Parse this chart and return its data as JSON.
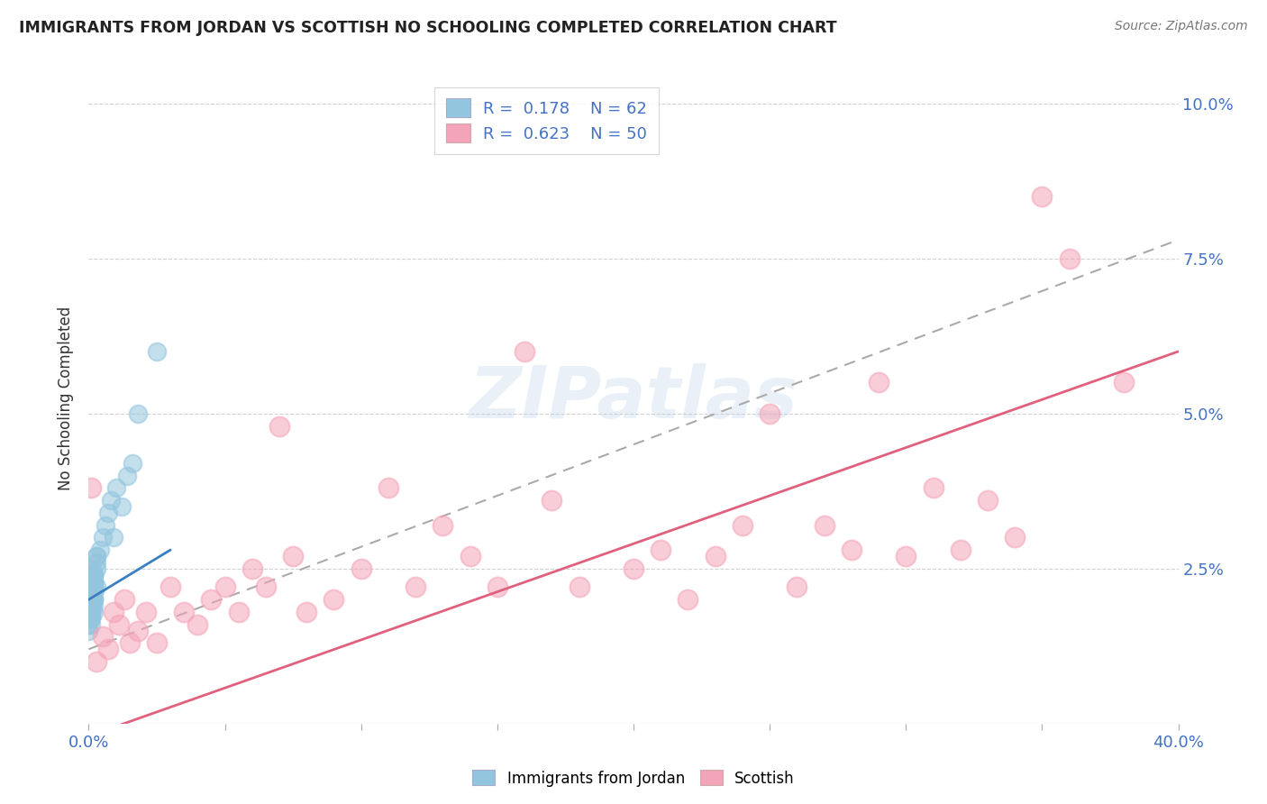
{
  "title": "IMMIGRANTS FROM JORDAN VS SCOTTISH NO SCHOOLING COMPLETED CORRELATION CHART",
  "source": "Source: ZipAtlas.com",
  "ylabel_left": "No Schooling Completed",
  "xlim": [
    0.0,
    0.4
  ],
  "ylim": [
    0.0,
    0.105
  ],
  "blue_color": "#92c5de",
  "pink_color": "#f4a4b8",
  "blue_line_color": "#3a7fc1",
  "pink_line_color": "#e0607e",
  "dash_color": "#aaaaaa",
  "watermark": "ZIPatlas",
  "jordan_scatter_x": [
    0.0,
    0.001,
    0.0,
    0.001,
    0.002,
    0.001,
    0.001,
    0.0,
    0.001,
    0.002,
    0.001,
    0.002,
    0.001,
    0.003,
    0.001,
    0.002,
    0.001,
    0.002,
    0.001,
    0.0,
    0.001,
    0.001,
    0.002,
    0.001,
    0.001,
    0.002,
    0.001,
    0.001,
    0.002,
    0.001,
    0.001,
    0.0,
    0.001,
    0.001,
    0.002,
    0.001,
    0.001,
    0.002,
    0.001,
    0.002,
    0.001,
    0.003,
    0.002,
    0.001,
    0.003,
    0.002,
    0.001,
    0.003,
    0.004,
    0.002,
    0.005,
    0.006,
    0.003,
    0.007,
    0.008,
    0.009,
    0.01,
    0.012,
    0.014,
    0.016,
    0.018,
    0.025
  ],
  "jordan_scatter_y": [
    0.018,
    0.019,
    0.02,
    0.017,
    0.02,
    0.021,
    0.022,
    0.015,
    0.016,
    0.023,
    0.024,
    0.018,
    0.025,
    0.022,
    0.019,
    0.02,
    0.023,
    0.021,
    0.018,
    0.016,
    0.019,
    0.017,
    0.022,
    0.02,
    0.021,
    0.019,
    0.023,
    0.018,
    0.02,
    0.021,
    0.022,
    0.017,
    0.019,
    0.02,
    0.023,
    0.021,
    0.018,
    0.024,
    0.02,
    0.022,
    0.021,
    0.025,
    0.023,
    0.019,
    0.026,
    0.024,
    0.02,
    0.027,
    0.028,
    0.024,
    0.03,
    0.032,
    0.027,
    0.034,
    0.036,
    0.03,
    0.038,
    0.035,
    0.04,
    0.042,
    0.05,
    0.06
  ],
  "scottish_scatter_x": [
    0.001,
    0.003,
    0.005,
    0.007,
    0.009,
    0.011,
    0.013,
    0.015,
    0.018,
    0.021,
    0.025,
    0.03,
    0.035,
    0.04,
    0.045,
    0.05,
    0.055,
    0.06,
    0.065,
    0.07,
    0.075,
    0.08,
    0.09,
    0.1,
    0.11,
    0.12,
    0.13,
    0.14,
    0.15,
    0.16,
    0.17,
    0.18,
    0.2,
    0.21,
    0.22,
    0.23,
    0.24,
    0.25,
    0.26,
    0.27,
    0.28,
    0.29,
    0.3,
    0.31,
    0.32,
    0.33,
    0.34,
    0.35,
    0.36,
    0.38
  ],
  "scottish_scatter_y": [
    0.038,
    0.01,
    0.014,
    0.012,
    0.018,
    0.016,
    0.02,
    0.013,
    0.015,
    0.018,
    0.013,
    0.022,
    0.018,
    0.016,
    0.02,
    0.022,
    0.018,
    0.025,
    0.022,
    0.048,
    0.027,
    0.018,
    0.02,
    0.025,
    0.038,
    0.022,
    0.032,
    0.027,
    0.022,
    0.06,
    0.036,
    0.022,
    0.025,
    0.028,
    0.02,
    0.027,
    0.032,
    0.05,
    0.022,
    0.032,
    0.028,
    0.055,
    0.027,
    0.038,
    0.028,
    0.036,
    0.03,
    0.085,
    0.075,
    0.055
  ],
  "blue_line_x0": 0.0,
  "blue_line_x1": 0.03,
  "blue_line_y0": 0.02,
  "blue_line_y1": 0.028,
  "dash_line_x0": 0.0,
  "dash_line_x1": 0.4,
  "dash_line_y0": 0.012,
  "dash_line_y1": 0.078,
  "pink_line_x0": 0.0,
  "pink_line_x1": 0.4,
  "pink_line_y0": -0.002,
  "pink_line_y1": 0.06
}
